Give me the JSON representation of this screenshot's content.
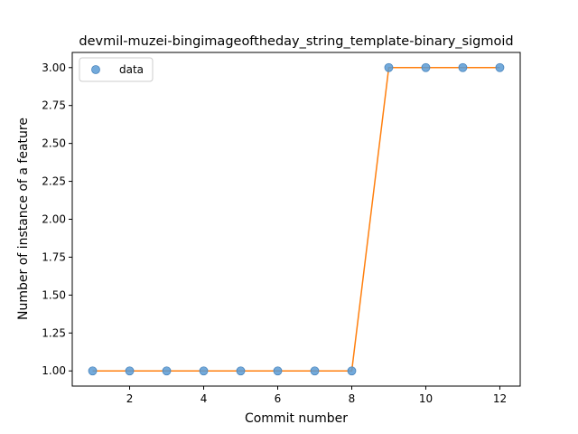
{
  "chart_data": {
    "type": "scatter",
    "title": "devmil-muzei-bingimageoftheday_string_template-binary_sigmoid",
    "xlabel": "Commit number",
    "ylabel": "Number of instance of a feature",
    "xlim": [
      0.45,
      12.55
    ],
    "ylim": [
      0.9,
      3.1
    ],
    "xticks": [
      2,
      4,
      6,
      8,
      10,
      12
    ],
    "yticks": [
      1.0,
      1.25,
      1.5,
      1.75,
      2.0,
      2.25,
      2.5,
      2.75,
      3.0
    ],
    "ytick_labels": [
      "1.00",
      "1.25",
      "1.50",
      "1.75",
      "2.00",
      "2.25",
      "2.50",
      "2.75",
      "3.00"
    ],
    "xtick_labels": [
      "2",
      "4",
      "6",
      "8",
      "10",
      "12"
    ],
    "grid": false,
    "legend": {
      "position": "top-left",
      "entries": [
        "data"
      ]
    },
    "series": [
      {
        "name": "data",
        "kind": "scatter",
        "color": "#5b9bd5",
        "x": [
          1,
          2,
          3,
          4,
          5,
          6,
          7,
          8,
          9,
          10,
          11,
          12
        ],
        "y": [
          1,
          1,
          1,
          1,
          1,
          1,
          1,
          1,
          3,
          3,
          3,
          3
        ]
      },
      {
        "kind": "line",
        "color": "#ff7f0e",
        "x": [
          1,
          2,
          3,
          4,
          5,
          6,
          7,
          8,
          9,
          10,
          11,
          12
        ],
        "y": [
          1,
          1,
          1,
          1,
          1,
          1,
          1,
          1,
          3,
          3,
          3,
          3
        ]
      }
    ]
  }
}
